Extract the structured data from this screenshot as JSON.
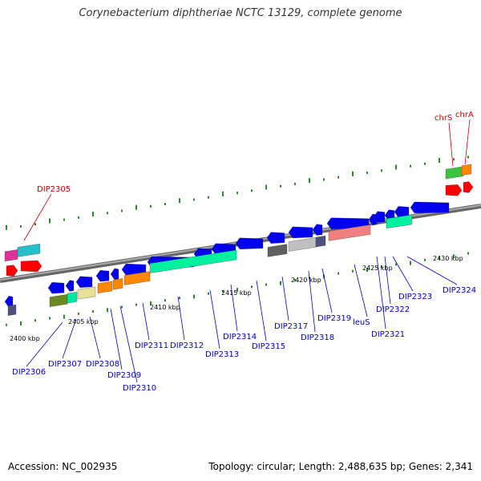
{
  "title": "Corynebacterium diphtheriae NCTC 13129, complete genome",
  "footer": {
    "accession": "Accession: NC_002935",
    "summary": "Topology: circular; Length: 2,488,635 bp; Genes: 2,341"
  },
  "colors": {
    "backbone": "#808080",
    "gene_cds": "#0000ee",
    "label_cds": "#0000cc",
    "label_other": "#cc0000",
    "gc_marks": "#2f8a2f"
  },
  "ticks": [
    "2400 kbp",
    "2405 kbp",
    "2410 kbp",
    "2415 kbp",
    "2420 kbp",
    "2425 kbp",
    "2430 kbp"
  ],
  "gene_labels": [
    {
      "text": "DIP2305",
      "kind": "other"
    },
    {
      "text": "chrS",
      "kind": "other"
    },
    {
      "text": "chrA",
      "kind": "other"
    },
    {
      "text": "DIP2306",
      "kind": "cds"
    },
    {
      "text": "DIP2307",
      "kind": "cds"
    },
    {
      "text": "DIP2308",
      "kind": "cds"
    },
    {
      "text": "DIP2309",
      "kind": "cds"
    },
    {
      "text": "DIP2310",
      "kind": "cds"
    },
    {
      "text": "DIP2311",
      "kind": "cds"
    },
    {
      "text": "DIP2312",
      "kind": "cds"
    },
    {
      "text": "DIP2313",
      "kind": "cds"
    },
    {
      "text": "DIP2314",
      "kind": "cds"
    },
    {
      "text": "DIP2315",
      "kind": "cds"
    },
    {
      "text": "DIP2317",
      "kind": "cds"
    },
    {
      "text": "DIP2318",
      "kind": "cds"
    },
    {
      "text": "DIP2319",
      "kind": "cds"
    },
    {
      "text": "leuS",
      "kind": "cds"
    },
    {
      "text": "DIP2321",
      "kind": "cds"
    },
    {
      "text": "DIP2322",
      "kind": "cds"
    },
    {
      "text": "DIP2323",
      "kind": "cds"
    },
    {
      "text": "DIP2324",
      "kind": "cds"
    }
  ]
}
